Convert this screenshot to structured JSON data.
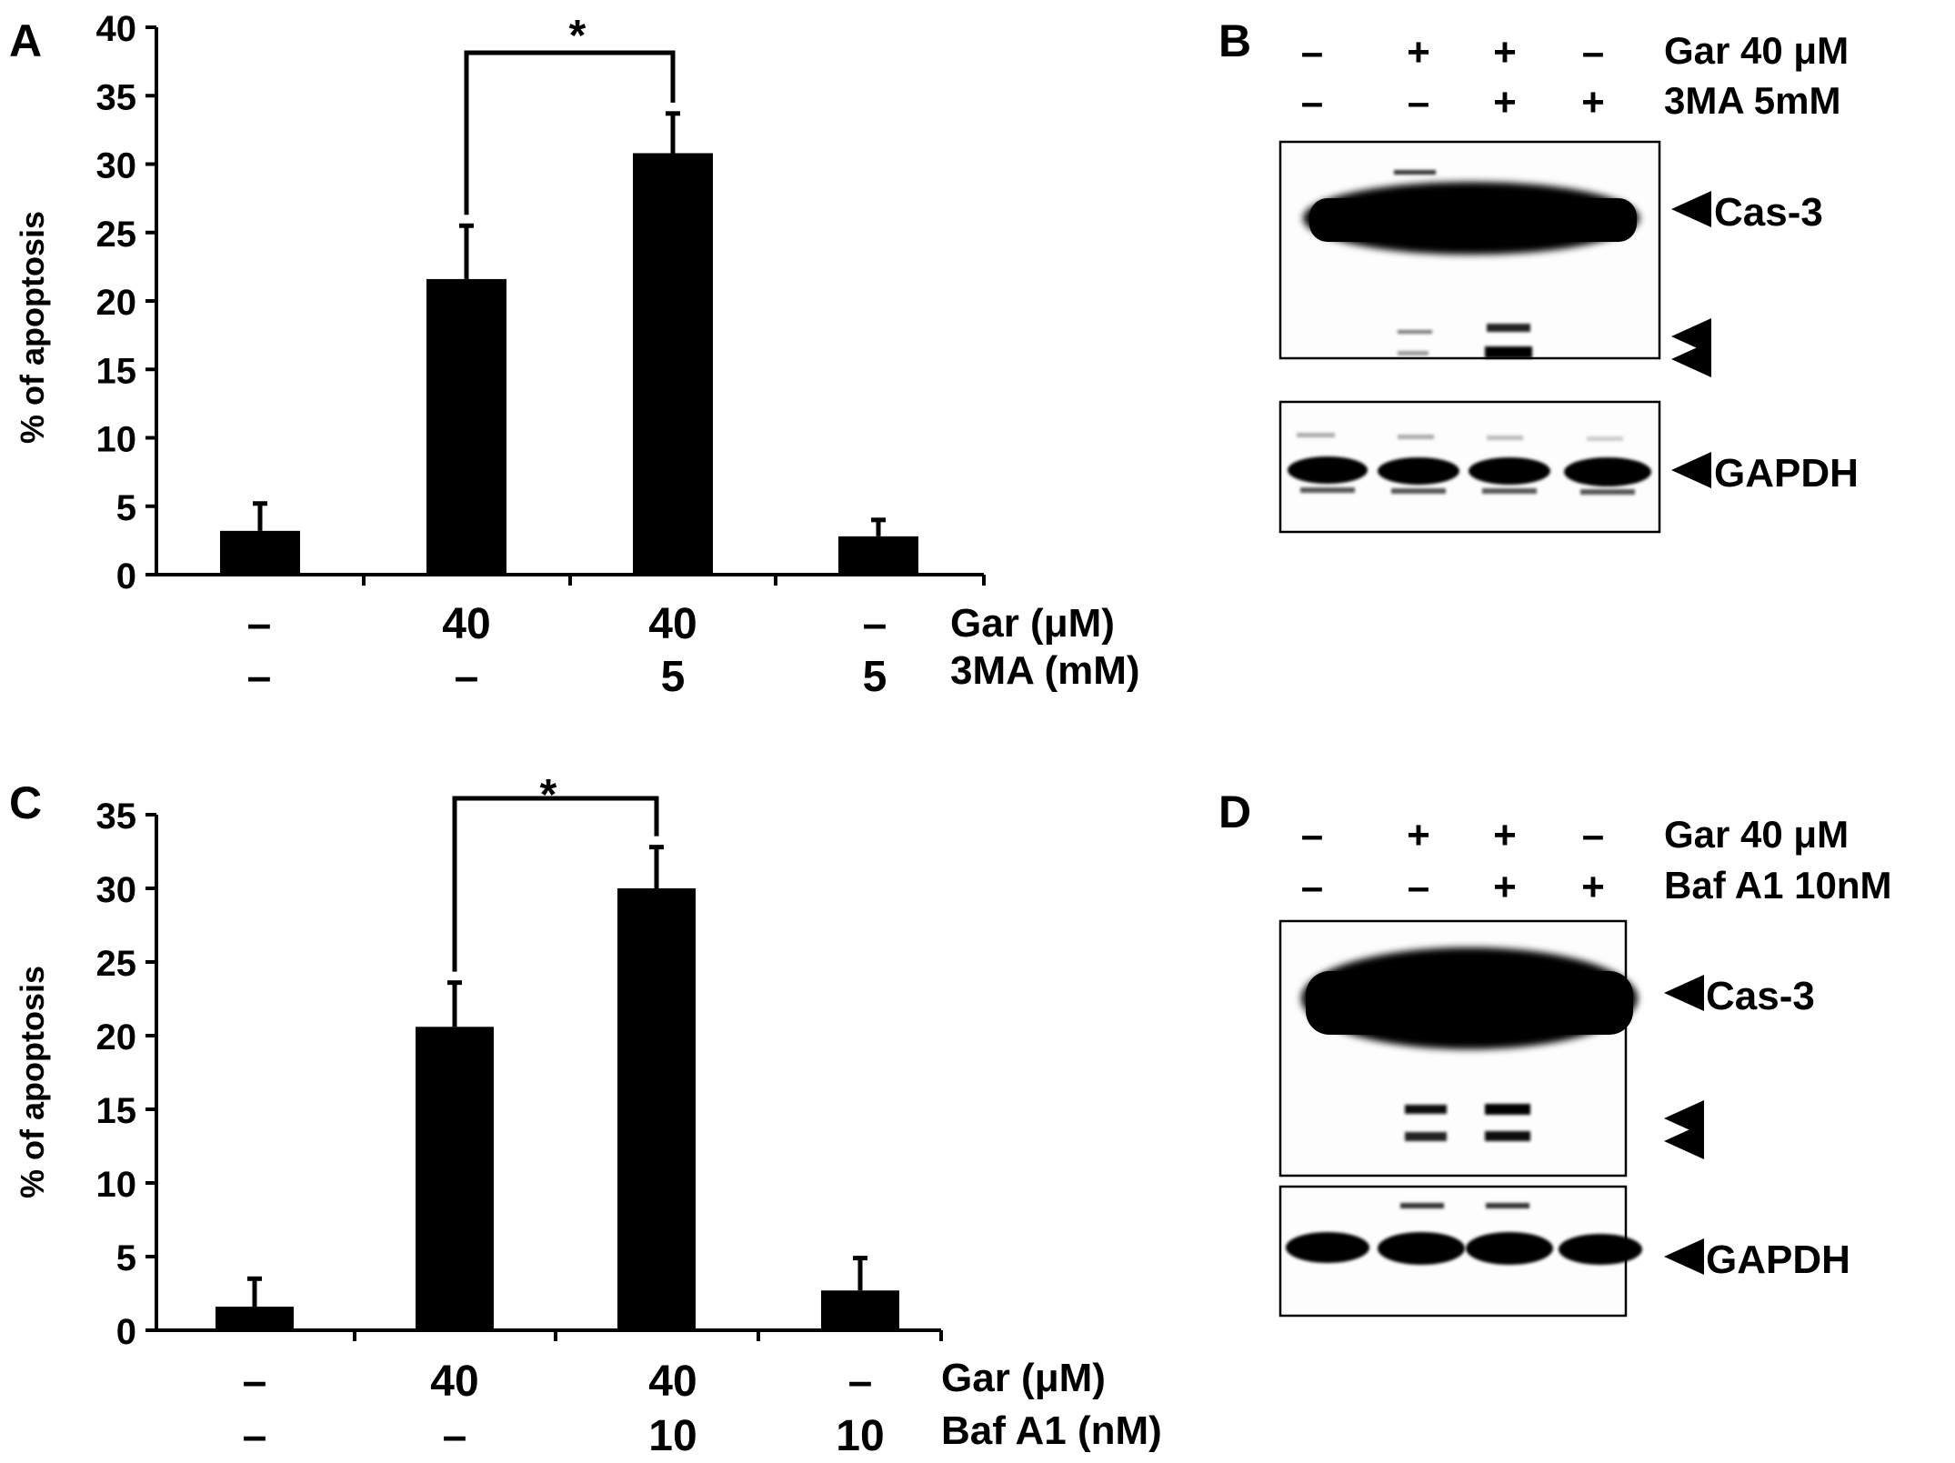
{
  "panels": {
    "A": {
      "letter": "A",
      "ylabel": "% of apoptosis",
      "sig": "*",
      "row1_vals": [
        "–",
        "40",
        "40",
        "–"
      ],
      "row1_label": "Gar  (μM)",
      "row2_vals": [
        "–",
        "–",
        "5",
        "5"
      ],
      "row2_label": "3MA (mM)"
    },
    "B": {
      "letter": "B",
      "hdr1_signs": [
        "–",
        "+",
        "+",
        "–"
      ],
      "hdr1_label": "Gar 40 μM",
      "hdr2_signs": [
        "–",
        "–",
        "+",
        "+"
      ],
      "hdr2_label": "3MA 5mM",
      "band_cas3": "Cas-3",
      "band_gapdh": "GAPDH"
    },
    "C": {
      "letter": "C",
      "ylabel": "% of apoptosis",
      "sig": "*",
      "row1_vals": [
        "–",
        "40",
        "40",
        "–"
      ],
      "row1_label": "Gar  (μM)",
      "row2_vals": [
        "–",
        "–",
        "10",
        "10"
      ],
      "row2_label": "Baf A1 (nM)"
    },
    "D": {
      "letter": "D",
      "hdr1_signs": [
        "–",
        "+",
        "+",
        "–"
      ],
      "hdr1_label": "Gar 40 μM",
      "hdr2_signs": [
        "–",
        "–",
        "+",
        "+"
      ],
      "hdr2_label": "Baf A1 10nM",
      "band_cas3": "Cas-3",
      "band_gapdh": "GAPDH"
    }
  },
  "chart_data": [
    {
      "panel": "A",
      "type": "bar",
      "categories": [
        "– / –",
        "40 / –",
        "40 / 5",
        "– / 5"
      ],
      "values": [
        3.2,
        21.6,
        30.8,
        2.8
      ],
      "errors": [
        2.0,
        3.9,
        2.9,
        1.2
      ],
      "ylim": [
        0,
        40
      ],
      "yticks": [
        0,
        5,
        10,
        15,
        20,
        25,
        30,
        35,
        40
      ],
      "significance": {
        "between": [
          1,
          2
        ],
        "label": "*"
      },
      "ylabel": "% of apoptosis",
      "xlabel": ""
    },
    {
      "panel": "C",
      "type": "bar",
      "categories": [
        "– / –",
        "40 / –",
        "40 / 10",
        "– / 10"
      ],
      "values": [
        1.6,
        20.6,
        30.0,
        2.7
      ],
      "errors": [
        1.9,
        3.0,
        2.8,
        2.2
      ],
      "ylim": [
        0,
        35
      ],
      "yticks": [
        0,
        5,
        10,
        15,
        20,
        25,
        30,
        35
      ],
      "significance": {
        "between": [
          1,
          2
        ],
        "label": "*"
      },
      "ylabel": "% of apoptosis",
      "xlabel": ""
    }
  ]
}
